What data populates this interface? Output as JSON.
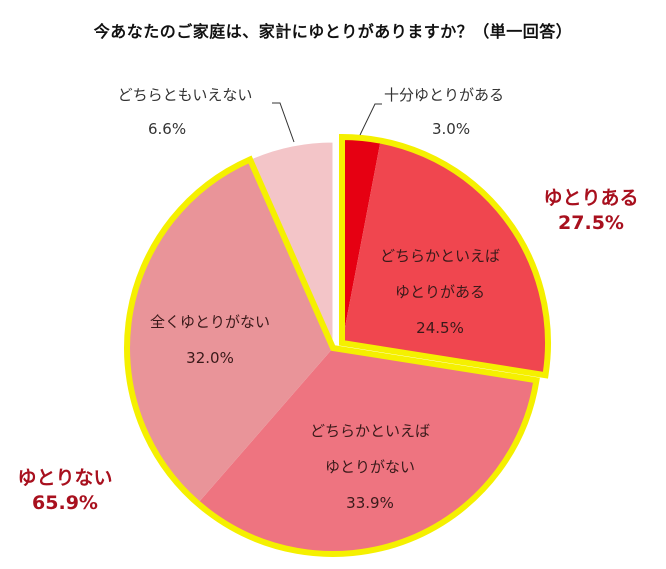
{
  "title": "今あなたのご家庭は、家計にゆとりがありますか？（単一回答）",
  "chart_data": {
    "type": "pie",
    "title": "今あなたのご家庭は、家計にゆとりがありますか？（単一回答）",
    "start_angle_deg": 0,
    "direction": "clockwise",
    "slices": [
      {
        "label": "十分ゆとりがある",
        "value": 3.0,
        "display": "3.0%",
        "color": "#e60012",
        "group": "ゆとりある"
      },
      {
        "label": "どちらかといえばゆとりがある",
        "label_lines": [
          "どちらかといえば",
          "ゆとりがある"
        ],
        "value": 24.5,
        "display": "24.5%",
        "color": "#f0464f",
        "group": "ゆとりある"
      },
      {
        "label": "どちらかといえばゆとりがない",
        "label_lines": [
          "どちらかといえば",
          "ゆとりがない"
        ],
        "value": 33.9,
        "display": "33.9%",
        "color": "#ee7480",
        "group": "ゆとりない"
      },
      {
        "label": "全くゆとりがない",
        "value": 32.0,
        "display": "32.0%",
        "color": "#e99499",
        "group": "ゆとりない"
      },
      {
        "label": "どちらともいえない",
        "value": 6.6,
        "display": "6.6%",
        "color": "#f3c5c8",
        "group": null
      }
    ],
    "groups": [
      {
        "label": "ゆとりある",
        "value": 27.5,
        "display": "27.5%",
        "color": "#a8101e"
      },
      {
        "label": "ゆとりない",
        "value": 65.9,
        "display": "65.9%",
        "color": "#a8101e"
      }
    ],
    "outline_color": "#f5f000"
  },
  "labels": {
    "s0_name": "十分ゆとりがある",
    "s0_val": "3.0%",
    "s1_line1": "どちらかといえば",
    "s1_line2": "ゆとりがある",
    "s1_val": "24.5%",
    "s2_line1": "どちらかといえば",
    "s2_line2": "ゆとりがない",
    "s2_val": "33.9%",
    "s3_name": "全くゆとりがない",
    "s3_val": "32.0%",
    "s4_name": "どちらともいえない",
    "s4_val": "6.6%",
    "g0_name": "ゆとりある",
    "g0_val": "27.5%",
    "g1_name": "ゆとりない",
    "g1_val": "65.9%"
  }
}
